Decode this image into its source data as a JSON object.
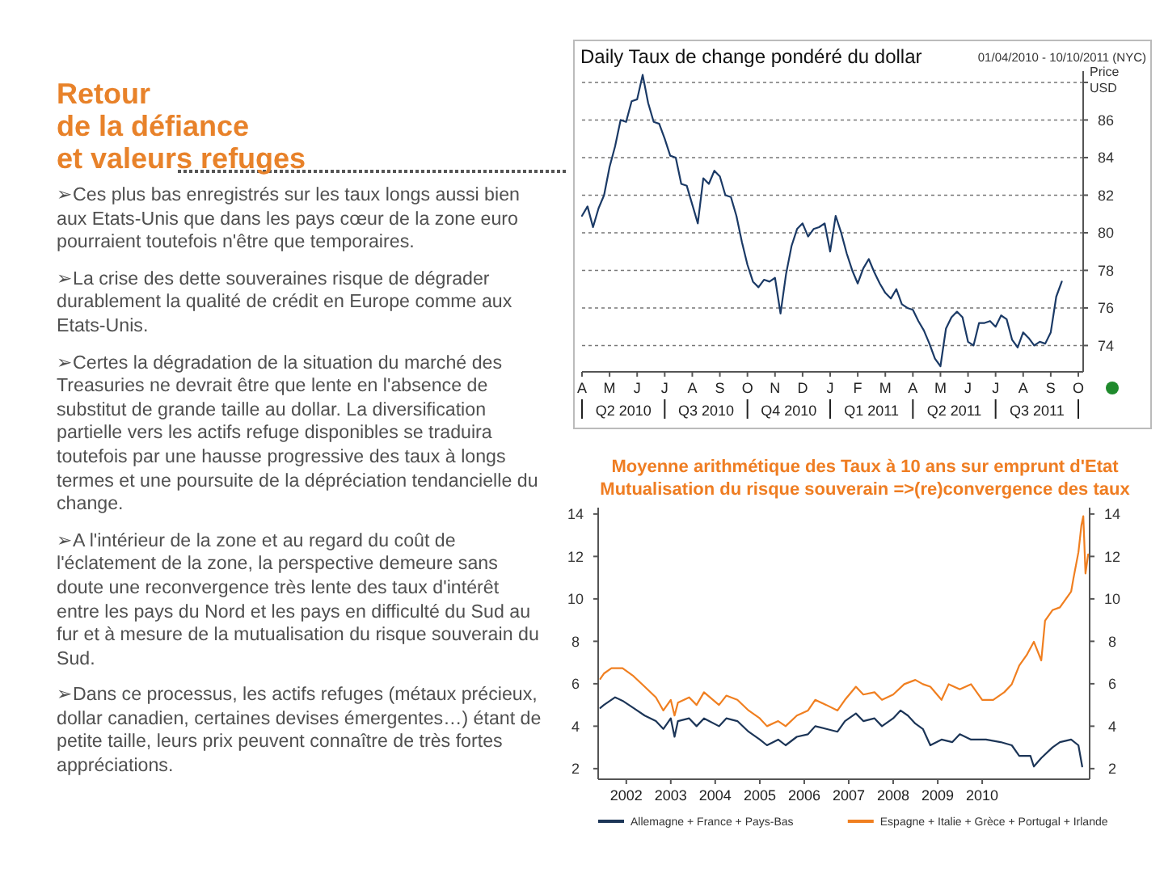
{
  "chart_data": [
    {
      "type": "other",
      "title": "Retour\nde la défiance\net valeurs refuges",
      "annotations": [
        "➢Ces plus bas enregistrés sur les taux longs aussi bien aux Etats-Unis que dans les pays cœur de la zone euro pourraient toutefois n'être que temporaires.",
        "➢La crise des dette souveraines risque de dégrader durablement la qualité de crédit en Europe comme aux Etats-Unis.",
        "➢Certes la dégradation de la situation du marché des Treasuries ne devrait être que lente en l'absence de substitut de grande taille au dollar. La diversification partielle vers les actifs refuge disponibles se traduira toutefois par une hausse progressive des taux à longs termes et une poursuite de la dépréciation tendancielle du change.",
        "➢A l'intérieur de la zone et au regard du coût de l'éclatement de la zone, la perspective demeure sans doute une reconvergence très lente  des taux d'intérêt entre les pays du Nord et les pays en difficulté du Sud au fur et à mesure de la mutualisation du risque souverain du Sud.",
        "➢Dans ce processus, les actifs refuges (métaux précieux, dollar canadien, certaines devises émergentes…) étant de petite taille, leurs prix peuvent connaître de très fortes appréciations."
      ]
    },
    {
      "type": "line",
      "title": "Daily Taux de change pondéré du dollar",
      "subtitle": "01/04/2010 - 10/10/2011 (NYC)",
      "ylabel": "Price\nUSD",
      "grid": "y",
      "line_style": "solid",
      "ylim": [
        72.6,
        88.6
      ],
      "yticks": [
        74,
        76,
        78,
        80,
        82,
        84,
        86,
        {
          "value": 88,
          "label": null
        }
      ],
      "categories": [
        "A",
        null,
        null,
        null,
        null,
        "M",
        null,
        null,
        null,
        null,
        "J",
        null,
        null,
        null,
        null,
        "J",
        null,
        null,
        null,
        null,
        "A",
        null,
        null,
        null,
        null,
        "S",
        null,
        null,
        null,
        null,
        "O",
        null,
        null,
        null,
        null,
        "N",
        null,
        null,
        null,
        null,
        "D",
        null,
        null,
        null,
        null,
        "J",
        null,
        null,
        null,
        null,
        "F",
        null,
        null,
        null,
        null,
        "M",
        null,
        null,
        null,
        null,
        "A",
        null,
        null,
        null,
        null,
        "M",
        null,
        null,
        null,
        null,
        "J",
        null,
        null,
        null,
        null,
        "J",
        null,
        null,
        null,
        null,
        "A",
        null,
        null,
        null,
        null,
        "S",
        null,
        null,
        null,
        null,
        "O"
      ],
      "annotations": [
        "Q2 2010",
        "Q3 2010",
        "Q4 2010",
        "Q1 2011",
        "Q2 2011",
        "Q3 2011"
      ],
      "series": [
        {
          "color": "#1b3a66",
          "values": [
            80.9,
            81.4,
            80.3,
            81.3,
            82.0,
            83.5,
            84.6,
            86.0,
            85.9,
            87.0,
            87.1,
            88.4,
            86.9,
            85.9,
            85.8,
            85.0,
            84.1,
            84.0,
            82.6,
            82.5,
            81.5,
            80.5,
            82.9,
            82.6,
            83.3,
            83.0,
            82.0,
            81.9,
            80.9,
            79.5,
            78.3,
            77.4,
            77.1,
            77.5,
            77.4,
            77.6,
            75.7,
            77.8,
            79.3,
            80.2,
            80.5,
            79.8,
            80.2,
            80.3,
            80.5,
            79.0,
            80.9,
            80.0,
            78.9,
            78.0,
            77.3,
            78.1,
            78.6,
            77.9,
            77.3,
            76.8,
            76.5,
            77.0,
            76.2,
            76.0,
            75.9,
            75.3,
            74.8,
            74.1,
            73.3,
            72.9,
            74.9,
            75.5,
            75.8,
            75.5,
            74.2,
            74.0,
            75.2,
            75.2,
            75.3,
            75.0,
            75.6,
            75.4,
            74.3,
            73.9,
            74.7,
            74.4,
            74.0,
            74.2,
            74.1,
            74.7,
            76.6,
            77.4,
            null,
            null,
            null
          ]
        }
      ]
    },
    {
      "type": "line",
      "title": "Moyenne arithmétique des Taux à 10 ans sur emprunt d'Etat",
      "subtitle": "Mutualisation du risque souverain =>(re)convergence des taux",
      "legend": "bottom",
      "line_style": "solid",
      "xlim": [
        "2001-05-15",
        "2012-06-01"
      ],
      "ylim": [
        1.5,
        14.3
      ],
      "yticks": [
        2,
        4,
        6,
        8,
        10,
        12,
        14
      ],
      "y2lim": [
        1.5,
        14.3
      ],
      "y2ticks": [
        2,
        4,
        6,
        8,
        10,
        12,
        14
      ],
      "xticks": [
        {
          "value": "2002",
          "label": "2002"
        },
        {
          "value": "2003",
          "label": "2003"
        },
        {
          "value": "2004",
          "label": "2004"
        },
        {
          "value": "2005",
          "label": "2005"
        },
        {
          "value": "2006",
          "label": "2006"
        },
        {
          "value": "2007",
          "label": "2007"
        },
        {
          "value": "2008",
          "label": "2008"
        },
        {
          "value": "2009",
          "label": "2009"
        },
        {
          "value": "2010",
          "label": "2010"
        }
      ],
      "series": [
        {
          "name": "Allemagne + France + Pays-Bas",
          "color": "#1c3557",
          "x": [
            "2001-06",
            "2001-07",
            "2001-10",
            "2001-12",
            "2002-03",
            "2002-06",
            "2002-09",
            "2002-11",
            "2003-01",
            "2003-02",
            "2003-03",
            "2003-06",
            "2003-08",
            "2003-10",
            "2004-02",
            "2004-04",
            "2004-07",
            "2004-10",
            "2005-01",
            "2005-03",
            "2005-06",
            "2005-08",
            "2005-11",
            "2006-02",
            "2006-04",
            "2006-07",
            "2006-10",
            "2006-12",
            "2007-03",
            "2007-05",
            "2007-08",
            "2007-10",
            "2008-01",
            "2008-03",
            "2008-05",
            "2008-07",
            "2008-09",
            "2008-11",
            "2009-02",
            "2009-05",
            "2009-07",
            "2009-10",
            "2010-02",
            "2010-06",
            "2010-09",
            "2010-11",
            "2011-02",
            "2011-03",
            "2011-05",
            "2011-08",
            "2011-10",
            "2012-01",
            "2012-03",
            "2012-04"
          ],
          "values": [
            4.86,
            5.0,
            5.36,
            5.2,
            4.86,
            4.5,
            4.24,
            3.87,
            4.37,
            3.5,
            4.24,
            4.37,
            4.0,
            4.37,
            4.0,
            4.37,
            4.24,
            3.74,
            3.37,
            3.1,
            3.37,
            3.1,
            3.5,
            3.62,
            4.0,
            3.87,
            3.74,
            4.24,
            4.6,
            4.24,
            4.37,
            4.0,
            4.37,
            4.74,
            4.5,
            4.12,
            3.87,
            3.1,
            3.37,
            3.25,
            3.62,
            3.37,
            3.37,
            3.25,
            3.1,
            2.6,
            2.6,
            2.1,
            2.5,
            3.0,
            3.25,
            3.37,
            3.1,
            2.1
          ]
        },
        {
          "name": "Espagne + Italie + Grèce + Portugal + Irlande",
          "color": "#f07f20",
          "x": [
            "2001-06",
            "2001-07",
            "2001-09",
            "2001-12",
            "2002-03",
            "2002-06",
            "2002-09",
            "2002-11",
            "2003-01",
            "2003-02",
            "2003-03",
            "2003-06",
            "2003-08",
            "2003-10",
            "2004-02",
            "2004-04",
            "2004-07",
            "2004-10",
            "2005-01",
            "2005-03",
            "2005-06",
            "2005-08",
            "2005-11",
            "2006-02",
            "2006-04",
            "2006-07",
            "2006-10",
            "2006-12",
            "2007-03",
            "2007-05",
            "2007-08",
            "2007-10",
            "2008-01",
            "2008-04",
            "2008-07",
            "2008-09",
            "2008-11",
            "2009-02",
            "2009-04",
            "2009-07",
            "2009-10",
            "2010-01",
            "2010-04",
            "2010-07",
            "2010-09",
            "2010-11",
            "2011-01",
            "2011-03",
            "2011-05",
            "2011-06",
            "2011-08",
            "2011-10",
            "2012-01-01",
            "2012-01-20",
            "2012-03-01",
            "2012-03-25",
            "2012-04-10",
            "2012-04-28",
            "2012-05-20"
          ],
          "values": [
            6.23,
            6.48,
            6.73,
            6.73,
            6.36,
            5.86,
            5.36,
            4.74,
            5.24,
            4.5,
            5.11,
            5.36,
            5.0,
            5.6,
            5.0,
            5.44,
            5.24,
            4.74,
            4.37,
            4.0,
            4.24,
            4.0,
            4.5,
            4.74,
            5.24,
            5.0,
            4.74,
            5.24,
            5.86,
            5.49,
            5.6,
            5.24,
            5.49,
            5.98,
            6.18,
            5.98,
            5.86,
            5.24,
            5.98,
            5.74,
            5.98,
            5.24,
            5.24,
            5.6,
            5.98,
            6.86,
            7.35,
            7.98,
            7.1,
            8.97,
            9.47,
            9.6,
            10.34,
            10.96,
            12.2,
            13.45,
            13.9,
            11.2,
            12.1
          ]
        }
      ]
    }
  ]
}
